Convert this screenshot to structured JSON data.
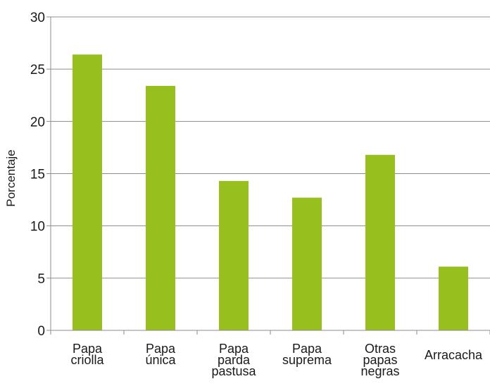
{
  "chart_data": {
    "type": "bar",
    "title": "",
    "xlabel": "",
    "ylabel": "Porcentaje",
    "ylim": [
      0,
      30
    ],
    "yticks": [
      0,
      5,
      10,
      15,
      20,
      25,
      30
    ],
    "grid": true,
    "legend": "none",
    "bar_color": "#97bf1e",
    "categories": [
      [
        "Papa",
        "criolla"
      ],
      [
        "Papa",
        "única"
      ],
      [
        "Papa",
        "parda",
        "pastusa"
      ],
      [
        "Papa",
        "suprema"
      ],
      [
        "Otras",
        "papas",
        "negras"
      ],
      [
        "Arracacha"
      ]
    ],
    "values": [
      26.4,
      23.4,
      14.3,
      12.7,
      16.8,
      6.1
    ]
  }
}
